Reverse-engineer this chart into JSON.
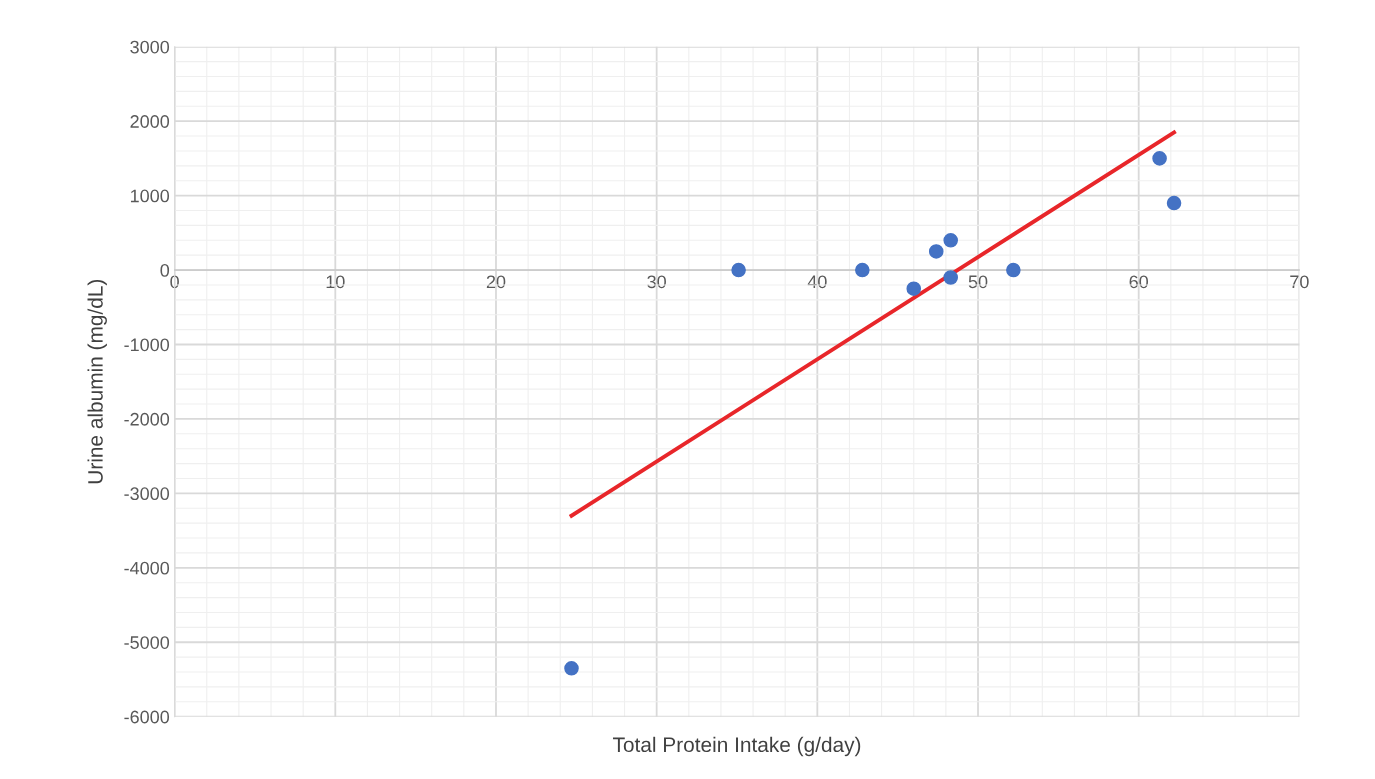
{
  "chart_data": {
    "type": "scatter",
    "xlabel": "Total Protein Intake (g/day)",
    "ylabel": "Urine albumin (mg/dL)",
    "series": [
      {
        "color": "#4472c4",
        "marker": "circle",
        "x": [
          24.7,
          35.1,
          42.8,
          46.0,
          47.4,
          48.3,
          48.3,
          52.2,
          61.3,
          62.2
        ],
        "values": [
          -5350,
          0,
          0,
          -250,
          250,
          400,
          -100,
          0,
          1500,
          900
        ]
      },
      {
        "type": "line",
        "marker": "none",
        "color": "#e8262a",
        "x": [
          24.7,
          62.2
        ],
        "values": [
          -3300,
          1850
        ]
      }
    ],
    "xlim": [
      0,
      70
    ],
    "xticks": [
      0,
      10,
      20,
      30,
      40,
      50,
      60,
      70
    ],
    "ylim": [
      -6000,
      3000
    ],
    "yticks": [
      -6000,
      -5000,
      -4000,
      -3000,
      -2000,
      -1000,
      0,
      1000,
      2000,
      3000
    ],
    "grid": true,
    "legend": false
  }
}
